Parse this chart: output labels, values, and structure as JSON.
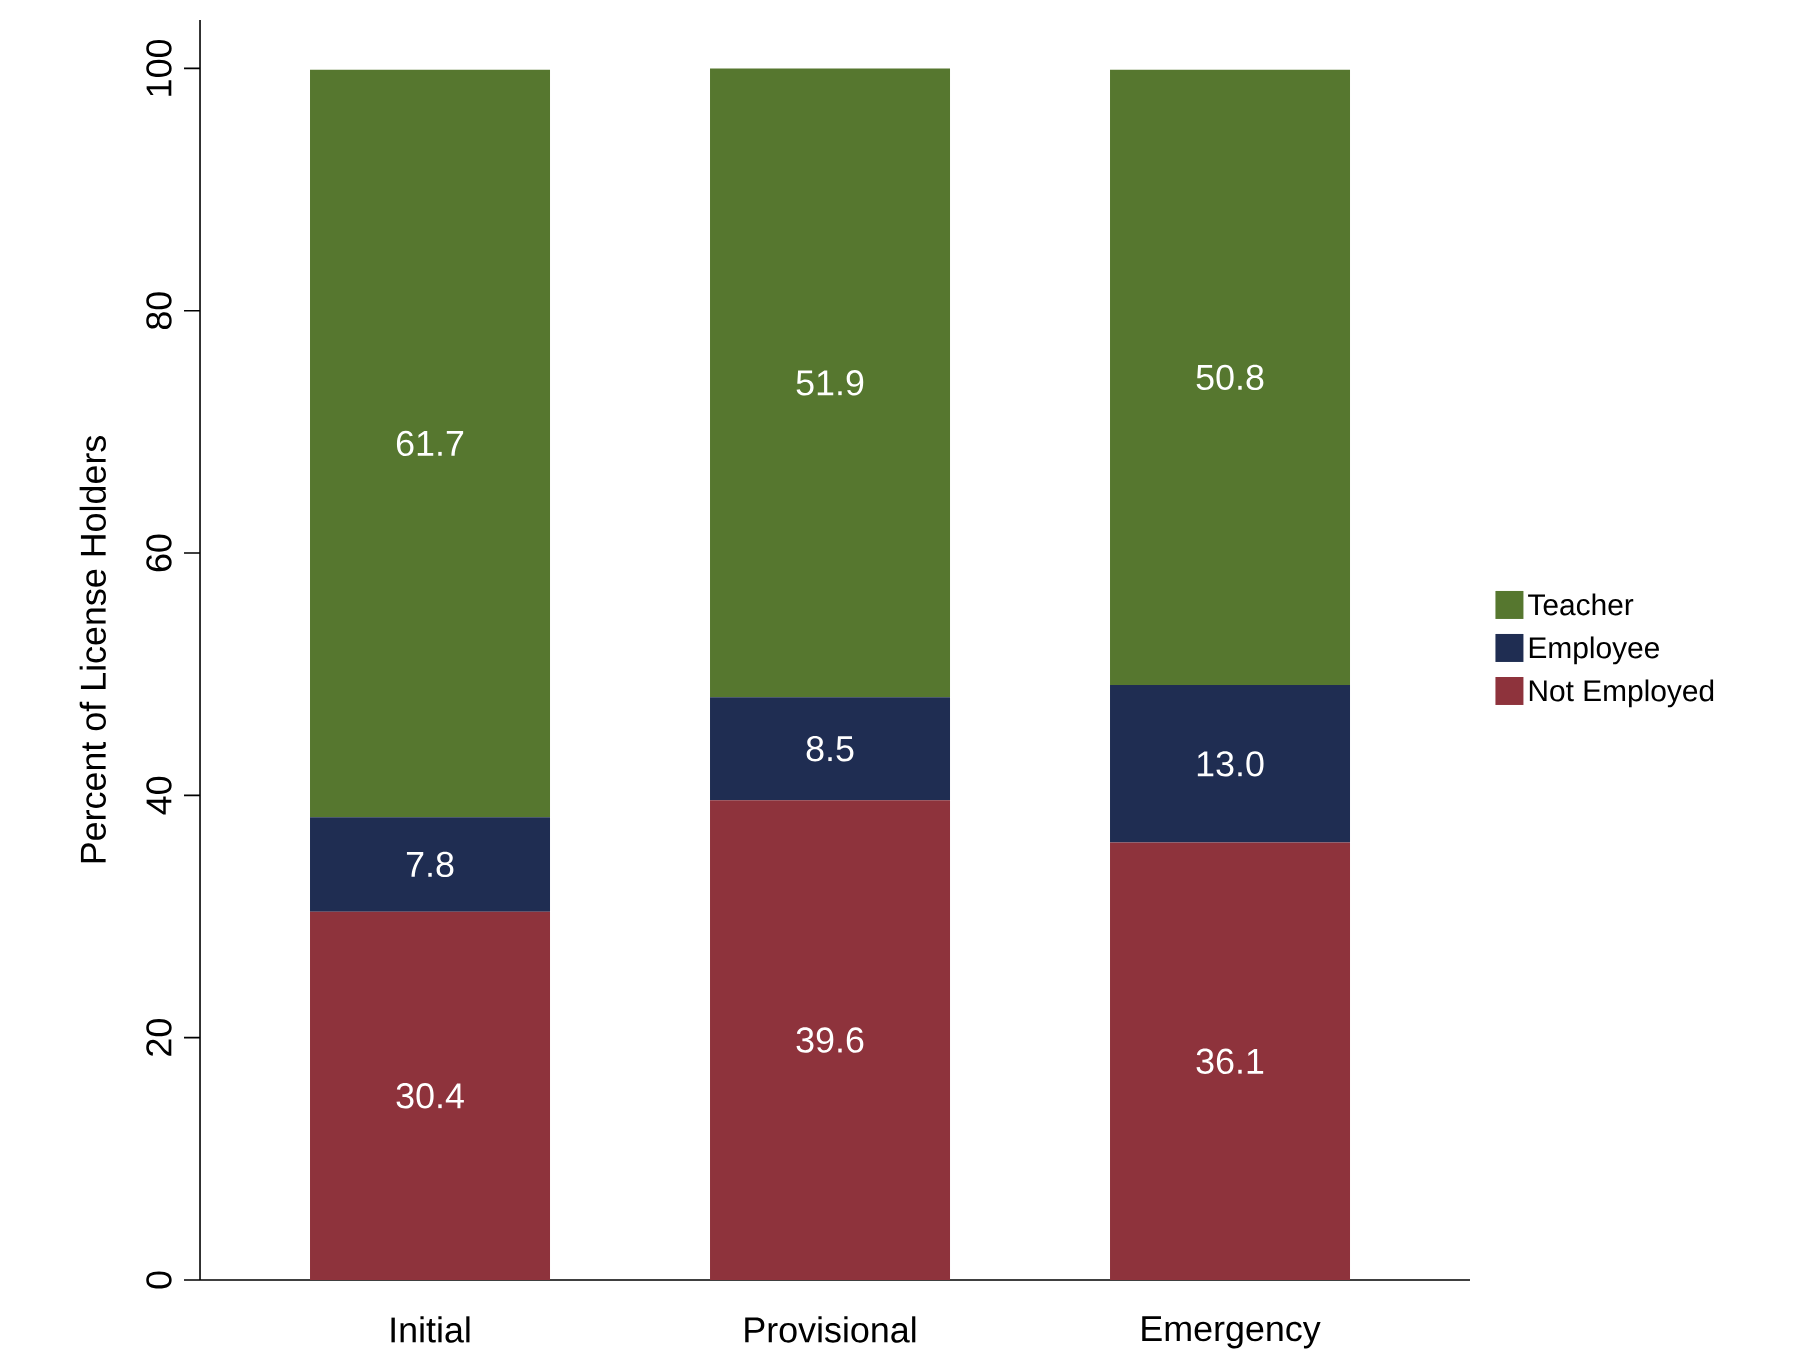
{
  "chart_data": {
    "type": "bar",
    "stacked": true,
    "ylabel": "Percent of License Holders",
    "categories": [
      "Initial",
      "Provisional",
      "Emergency"
    ],
    "series": [
      {
        "name": "Not Employed",
        "color": "#8e333c",
        "values": [
          30.4,
          39.6,
          36.1
        ],
        "value_labels": [
          "30.4",
          "39.6",
          "36.1"
        ]
      },
      {
        "name": "Employee",
        "color": "#1f2d52",
        "values": [
          7.8,
          8.5,
          13.0
        ],
        "value_labels": [
          "7.8",
          "8.5",
          "13.0"
        ]
      },
      {
        "name": "Teacher",
        "color": "#56772f",
        "values": [
          61.7,
          51.9,
          50.8
        ],
        "value_labels": [
          "61.7",
          "51.9",
          "50.8"
        ]
      }
    ],
    "ylim": [
      0,
      104
    ],
    "yticks": [
      0,
      20,
      40,
      60,
      80,
      100
    ],
    "legend": "right",
    "grid": false
  }
}
